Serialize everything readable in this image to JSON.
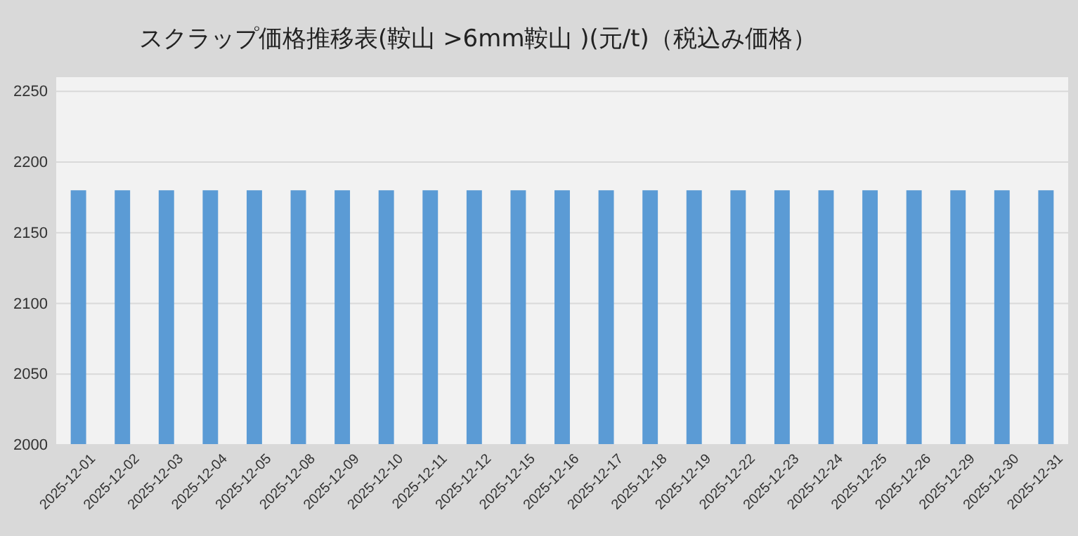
{
  "chart_data": {
    "type": "bar",
    "title": "スクラップ価格推移表(鞍山 >6mm鞍山 )(元/t)（税込み価格）",
    "categories": [
      "2025-12-01",
      "2025-12-02",
      "2025-12-03",
      "2025-12-04",
      "2025-12-05",
      "2025-12-08",
      "2025-12-09",
      "2025-12-10",
      "2025-12-11",
      "2025-12-12",
      "2025-12-15",
      "2025-12-16",
      "2025-12-17",
      "2025-12-18",
      "2025-12-19",
      "2025-12-22",
      "2025-12-23",
      "2025-12-24",
      "2025-12-25",
      "2025-12-26",
      "2025-12-29",
      "2025-12-30",
      "2025-12-31"
    ],
    "values": [
      2180,
      2180,
      2180,
      2180,
      2180,
      2180,
      2180,
      2180,
      2180,
      2180,
      2180,
      2180,
      2180,
      2180,
      2180,
      2180,
      2180,
      2180,
      2180,
      2180,
      2180,
      2180,
      2180
    ],
    "color": "#5b9bd5",
    "ylim": [
      2000,
      2260
    ],
    "yticks": [
      2000,
      2050,
      2100,
      2150,
      2200,
      2250
    ],
    "grid": "y"
  }
}
